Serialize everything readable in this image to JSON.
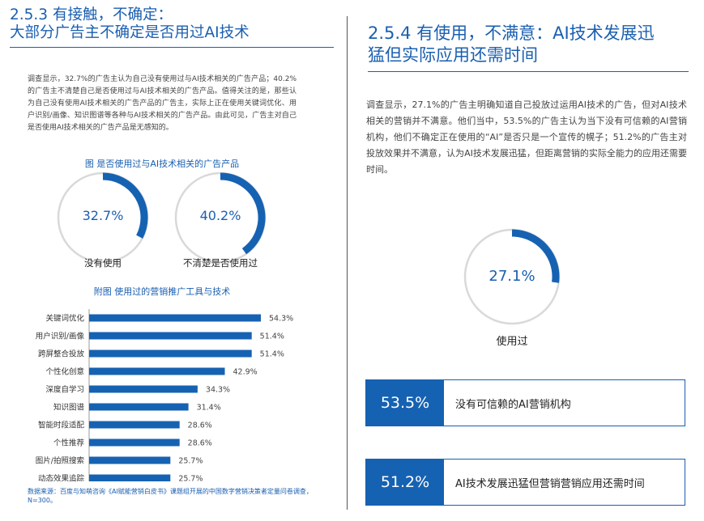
{
  "left": {
    "section_title_line1": "2.5.3 有接触，不确定：",
    "section_title_line2": "大部分广告主不确定是否用过AI技术",
    "body": "调查显示，32.7%的广告主认为自己没有使用过与AI技术相关的广告产品；40.2%的广告主不清楚自己是否使用过与AI技术相关的广告产品。值得关注的是，那些认为自己没有使用AI技术相关的广告产品的广告主，实际上正在使用关键词优化、用户识别/画像、知识图谱等各种与AI技术相关的广告产品。由此可见，广告主对自己是否使用AI技术相关的广告产品是无感知的。",
    "figure_caption": "图  是否使用过与AI技术相关的广告产品",
    "donuts": [
      {
        "percent_label": "32.7%",
        "value": 32.7,
        "label": "没有使用"
      },
      {
        "percent_label": "40.2%",
        "value": 40.2,
        "label": "不清楚是否使用过"
      }
    ],
    "appendix_caption": "附图  使用过的营销推广工具与技术",
    "source": "数据来源：百度与知萌咨询《AI赋能营销白皮书》课题组开展的中国数字营销决策者定量问卷调查，N=300。"
  },
  "chart_data": {
    "type": "bar",
    "orientation": "horizontal",
    "categories": [
      "关键词优化",
      "用户识别/画像",
      "跨屏整合投放",
      "个性化创意",
      "深度自学习",
      "知识图谱",
      "智能时段适配",
      "个性推荐",
      "图片/拍照搜索",
      "动态效果追踪"
    ],
    "values": [
      54.3,
      51.4,
      51.4,
      42.9,
      34.3,
      31.4,
      28.6,
      28.6,
      25.7,
      25.7
    ],
    "value_labels": [
      "54.3%",
      "51.4%",
      "51.4%",
      "42.9%",
      "34.3%",
      "31.4%",
      "28.6%",
      "28.6%",
      "25.7%",
      "25.7%"
    ],
    "title": "附图  使用过的营销推广工具与技术",
    "xlim": [
      0,
      60
    ],
    "color": "#1662b2"
  },
  "right": {
    "section_title_line1": "2.5.4 有使用，不满意：AI技术发展迅",
    "section_title_line2": "猛但实际应用还需时间",
    "body": "调查显示，27.1%的广告主明确知道自己投放过运用AI技术的广告，但对AI技术相关的营销并不满意。他们当中，53.5%的广告主认为当下没有可信赖的AI营销机构，他们不确定正在使用的“AI”是否只是一个宣传的幌子；51.2%的广告主对投放效果并不满意，认为AI技术发展迅猛，但距离营销的实际全能力的应用还需要时间。",
    "donut": {
      "percent_label": "27.1%",
      "value": 27.1,
      "label": "使用过"
    },
    "stats": [
      {
        "number": "53.5%",
        "text": "没有可信赖的AI营销机构"
      },
      {
        "number": "51.2%",
        "text": "AI技术发展迅猛但营销营销应用还需时间"
      }
    ]
  },
  "colors": {
    "accent": "#1662b2",
    "ring": "#d9d9d9"
  }
}
